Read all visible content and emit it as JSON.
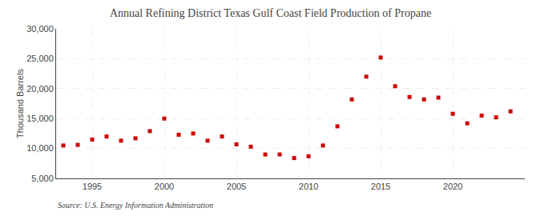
{
  "chart_data": {
    "type": "scatter",
    "title": "Annual Refining District Texas Gulf Coast Field Production of Propane",
    "ylabel": "Thousand Barrels",
    "source": "Source: U.S. Energy Information Administration",
    "x": [
      1993,
      1994,
      1995,
      1996,
      1997,
      1998,
      1999,
      2000,
      2001,
      2002,
      2003,
      2004,
      2005,
      2006,
      2007,
      2008,
      2009,
      2010,
      2011,
      2012,
      2013,
      2014,
      2015,
      2016,
      2017,
      2018,
      2019,
      2020,
      2021,
      2022,
      2023,
      2024
    ],
    "values": [
      10500,
      10600,
      11500,
      12000,
      11300,
      11700,
      12900,
      15000,
      12300,
      12500,
      11300,
      12000,
      10700,
      10300,
      9000,
      9000,
      8400,
      8700,
      10500,
      13700,
      18200,
      22000,
      25200,
      20400,
      18600,
      18200,
      18500,
      15800,
      14200,
      15500,
      15200,
      16200
    ],
    "color": "#cc0000",
    "marker": "square",
    "xlim": [
      1992.5,
      2025
    ],
    "xticks": [
      1995,
      2000,
      2005,
      2010,
      2015,
      2020
    ],
    "ylim": [
      5000,
      30000
    ],
    "yticks": [
      {
        "value": 5000,
        "label": "5,000"
      },
      {
        "value": 10000,
        "label": "10,000"
      },
      {
        "value": 15000,
        "label": "15,000"
      },
      {
        "value": 20000,
        "label": "20,000"
      },
      {
        "value": 25000,
        "label": "25,000"
      },
      {
        "value": 30000,
        "label": "30,000"
      }
    ],
    "grid": true
  }
}
